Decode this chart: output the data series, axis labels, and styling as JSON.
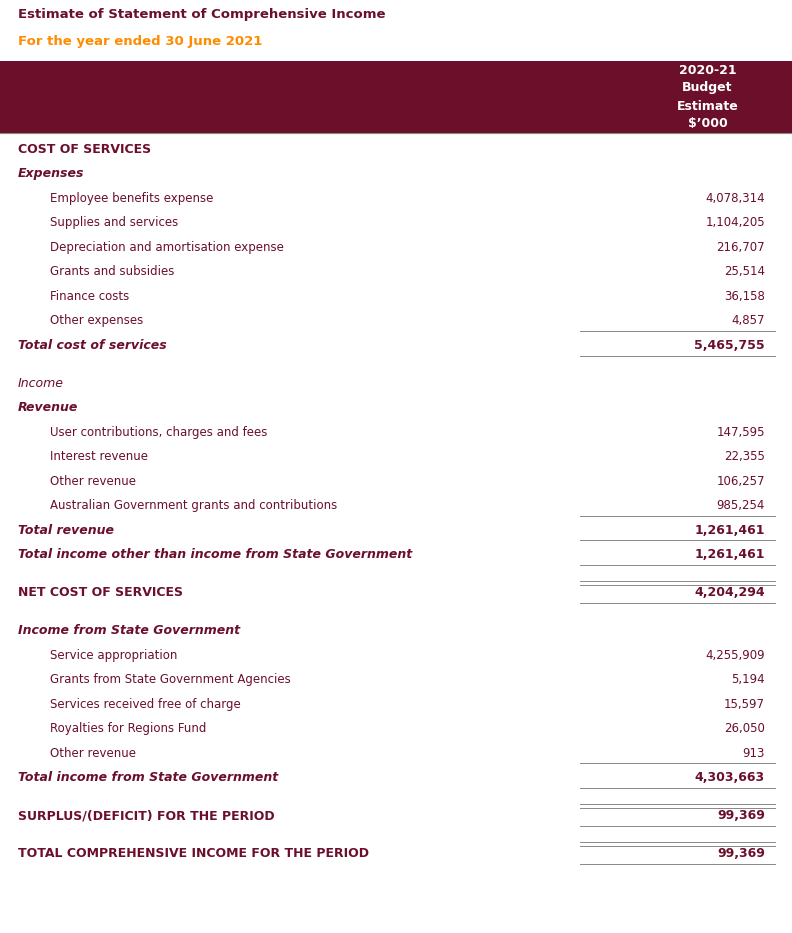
{
  "title1": "Estimate of Statement of Comprehensive Income",
  "title2": "For the year ended 30 June 2021",
  "title1_color": "#6B0F2B",
  "title2_color": "#FF8C00",
  "bg_color": "#FFFFFF",
  "header_bg": "#6B0F2B",
  "header_text": "2020-21\nBudget\nEstimate\n$’000",
  "header_text_color": "#FFFFFF",
  "text_color": "#6B0F2B",
  "rows": [
    {
      "label": "COST OF SERVICES",
      "value": "",
      "indent": 0,
      "style": "section_header",
      "line_above": false,
      "line_below": false
    },
    {
      "label": "Expenses",
      "value": "",
      "indent": 0,
      "style": "subsection_bold_italic",
      "line_above": false,
      "line_below": false
    },
    {
      "label": "Employee benefits expense",
      "value": "4,078,314",
      "indent": 1,
      "style": "normal",
      "line_above": false,
      "line_below": false
    },
    {
      "label": "Supplies and services",
      "value": "1,104,205",
      "indent": 1,
      "style": "normal",
      "line_above": false,
      "line_below": false
    },
    {
      "label": "Depreciation and amortisation expense",
      "value": "216,707",
      "indent": 1,
      "style": "normal",
      "line_above": false,
      "line_below": false
    },
    {
      "label": "Grants and subsidies",
      "value": "25,514",
      "indent": 1,
      "style": "normal",
      "line_above": false,
      "line_below": false
    },
    {
      "label": "Finance costs",
      "value": "36,158",
      "indent": 1,
      "style": "normal",
      "line_above": false,
      "line_below": false
    },
    {
      "label": "Other expenses",
      "value": "4,857",
      "indent": 1,
      "style": "normal",
      "line_above": false,
      "line_below": true
    },
    {
      "label": "Total cost of services",
      "value": "5,465,755",
      "indent": 0,
      "style": "total_bold_italic",
      "line_above": false,
      "line_below": true
    },
    {
      "label": "",
      "value": "",
      "indent": 0,
      "style": "spacer",
      "line_above": false,
      "line_below": false
    },
    {
      "label": "Income",
      "value": "",
      "indent": 0,
      "style": "subsection_italic",
      "line_above": false,
      "line_below": false
    },
    {
      "label": "Revenue",
      "value": "",
      "indent": 0,
      "style": "subsection_bold_italic",
      "line_above": false,
      "line_below": false
    },
    {
      "label": "User contributions, charges and fees",
      "value": "147,595",
      "indent": 1,
      "style": "normal",
      "line_above": false,
      "line_below": false
    },
    {
      "label": "Interest revenue",
      "value": "22,355",
      "indent": 1,
      "style": "normal",
      "line_above": false,
      "line_below": false
    },
    {
      "label": "Other revenue",
      "value": "106,257",
      "indent": 1,
      "style": "normal",
      "line_above": false,
      "line_below": false
    },
    {
      "label": "Australian Government grants and contributions",
      "value": "985,254",
      "indent": 1,
      "style": "normal",
      "line_above": false,
      "line_below": true
    },
    {
      "label": "Total revenue",
      "value": "1,261,461",
      "indent": 0,
      "style": "total_bold_italic",
      "line_above": false,
      "line_below": true
    },
    {
      "label": "Total income other than income from State Government",
      "value": "1,261,461",
      "indent": 0,
      "style": "total_bold_italic",
      "line_above": false,
      "line_below": true
    },
    {
      "label": "",
      "value": "",
      "indent": 0,
      "style": "spacer",
      "line_above": false,
      "line_below": false
    },
    {
      "label": "NET COST OF SERVICES",
      "value": "4,204,294",
      "indent": 0,
      "style": "section_header_value",
      "line_above": true,
      "line_below": true
    },
    {
      "label": "",
      "value": "",
      "indent": 0,
      "style": "spacer",
      "line_above": false,
      "line_below": false
    },
    {
      "label": "Income from State Government",
      "value": "",
      "indent": 0,
      "style": "subsection_bold_italic",
      "line_above": false,
      "line_below": false
    },
    {
      "label": "Service appropriation",
      "value": "4,255,909",
      "indent": 1,
      "style": "normal",
      "line_above": false,
      "line_below": false
    },
    {
      "label": "Grants from State Government Agencies",
      "value": "5,194",
      "indent": 1,
      "style": "normal",
      "line_above": false,
      "line_below": false
    },
    {
      "label": "Services received free of charge",
      "value": "15,597",
      "indent": 1,
      "style": "normal",
      "line_above": false,
      "line_below": false
    },
    {
      "label": "Royalties for Regions Fund",
      "value": "26,050",
      "indent": 1,
      "style": "normal",
      "line_above": false,
      "line_below": false
    },
    {
      "label": "Other revenue",
      "value": "913",
      "indent": 1,
      "style": "normal",
      "line_above": false,
      "line_below": true
    },
    {
      "label": "Total income from State Government",
      "value": "4,303,663",
      "indent": 0,
      "style": "total_bold_italic",
      "line_above": false,
      "line_below": true
    },
    {
      "label": "",
      "value": "",
      "indent": 0,
      "style": "spacer",
      "line_above": false,
      "line_below": false
    },
    {
      "label": "SURPLUS/(DEFICIT) FOR THE PERIOD",
      "value": "99,369",
      "indent": 0,
      "style": "section_header_value",
      "line_above": true,
      "line_below": true
    },
    {
      "label": "",
      "value": "",
      "indent": 0,
      "style": "spacer",
      "line_above": false,
      "line_below": false
    },
    {
      "label": "TOTAL COMPREHENSIVE INCOME FOR THE PERIOD",
      "value": "99,369",
      "indent": 0,
      "style": "section_header_value",
      "line_above": true,
      "line_below": true
    }
  ]
}
